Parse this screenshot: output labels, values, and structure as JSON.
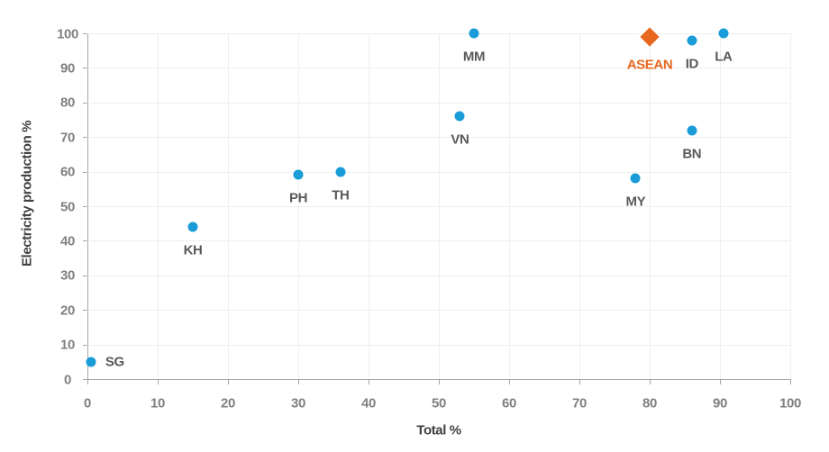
{
  "chart_data": {
    "type": "scatter",
    "title": "",
    "xlabel": "Total %",
    "ylabel": "Electricity production %",
    "xlim": [
      0,
      100
    ],
    "ylim": [
      0,
      100
    ],
    "xticks": [
      0,
      10,
      20,
      30,
      40,
      50,
      60,
      70,
      80,
      90,
      100
    ],
    "yticks": [
      0,
      10,
      20,
      30,
      40,
      50,
      60,
      70,
      80,
      90,
      100
    ],
    "grid": true,
    "legend": "none",
    "colors": {
      "point": "#1a9cd8",
      "highlight": "#e8671e",
      "grid": "#efefef",
      "axis_line": "#a6a6a6",
      "tick_label": "#808080",
      "point_label": "#595959",
      "axis_title": "#404040"
    },
    "points": [
      {
        "label": "SG",
        "x": 0.5,
        "y": 5,
        "marker": "circle",
        "label_pos": "right"
      },
      {
        "label": "KH",
        "x": 15,
        "y": 44,
        "marker": "circle",
        "label_pos": "below"
      },
      {
        "label": "PH",
        "x": 30,
        "y": 59,
        "marker": "circle",
        "label_pos": "below"
      },
      {
        "label": "TH",
        "x": 36,
        "y": 60,
        "marker": "circle",
        "label_pos": "below"
      },
      {
        "label": "VN",
        "x": 53,
        "y": 76,
        "marker": "circle",
        "label_pos": "below"
      },
      {
        "label": "MM",
        "x": 55,
        "y": 100,
        "marker": "circle",
        "label_pos": "below"
      },
      {
        "label": "MY",
        "x": 78,
        "y": 58,
        "marker": "circle",
        "label_pos": "below"
      },
      {
        "label": "ASEAN",
        "x": 80,
        "y": 99,
        "marker": "diamond",
        "label_pos": "below",
        "highlight": true
      },
      {
        "label": "BN",
        "x": 86,
        "y": 72,
        "marker": "circle",
        "label_pos": "below"
      },
      {
        "label": "ID",
        "x": 86,
        "y": 98,
        "marker": "circle",
        "label_pos": "below"
      },
      {
        "label": "LA",
        "x": 90.5,
        "y": 100,
        "marker": "circle",
        "label_pos": "below"
      }
    ]
  }
}
